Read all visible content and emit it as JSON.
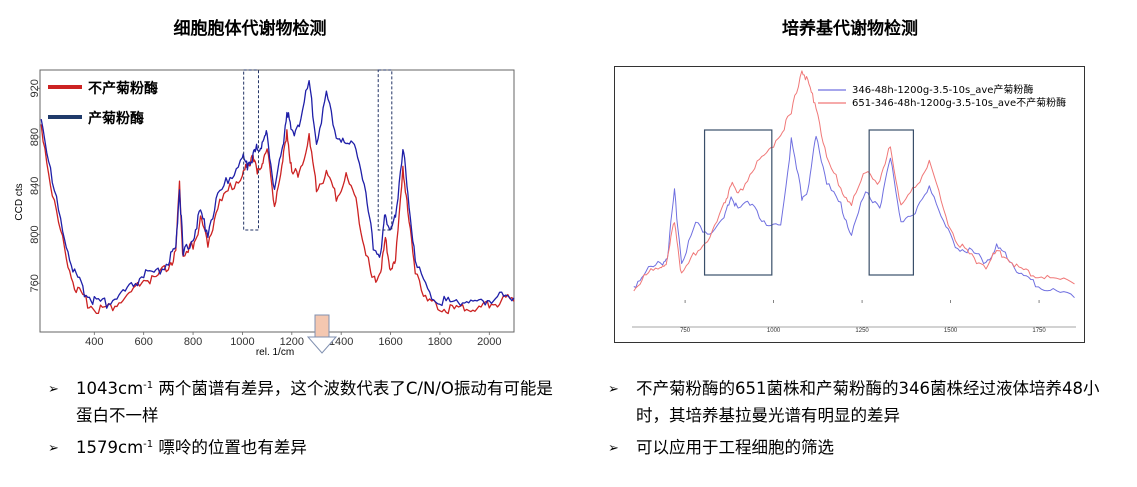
{
  "titles": {
    "left": "细胞胞体代谢物检测",
    "right": "培养基代谢物检测"
  },
  "chart_data": [
    {
      "type": "line",
      "xlabel": "rel. 1/cm",
      "ylabel": "CCD cts",
      "xlim": [
        180,
        2100
      ],
      "ylim": [
        720,
        935
      ],
      "xticks": [
        400,
        600,
        800,
        1000,
        1200,
        1400,
        1600,
        1800,
        2000
      ],
      "yticks": [
        760,
        800,
        840,
        880,
        920
      ],
      "legend": "top-left",
      "series": [
        {
          "name": "不产菊粉酶",
          "color": "#cc2222",
          "x": [
            185,
            230,
            280,
            320,
            360,
            400,
            450,
            500,
            550,
            600,
            650,
            700,
            730,
            745,
            760,
            800,
            830,
            860,
            900,
            950,
            1000,
            1020,
            1043,
            1060,
            1080,
            1100,
            1130,
            1160,
            1180,
            1200,
            1230,
            1270,
            1300,
            1340,
            1380,
            1420,
            1460,
            1500,
            1530,
            1560,
            1579,
            1600,
            1620,
            1650,
            1670,
            1700,
            1750,
            1800,
            1850,
            1900,
            1950,
            2000,
            2050,
            2100
          ],
          "y": [
            888,
            830,
            785,
            755,
            744,
            738,
            736,
            742,
            748,
            760,
            760,
            772,
            780,
            842,
            775,
            790,
            808,
            792,
            820,
            835,
            848,
            852,
            865,
            845,
            858,
            866,
            824,
            850,
            885,
            846,
            850,
            876,
            835,
            848,
            828,
            845,
            826,
            782,
            758,
            768,
            792,
            770,
            774,
            855,
            815,
            770,
            742,
            739,
            736,
            739,
            735,
            741,
            743,
            745
          ]
        },
        {
          "name": "产菊粉酶",
          "color": "#1f1fa8",
          "x": [
            185,
            230,
            280,
            320,
            360,
            400,
            450,
            500,
            550,
            600,
            650,
            700,
            730,
            745,
            760,
            800,
            830,
            860,
            900,
            950,
            1000,
            1020,
            1043,
            1060,
            1080,
            1100,
            1130,
            1160,
            1180,
            1200,
            1230,
            1270,
            1300,
            1340,
            1380,
            1420,
            1460,
            1500,
            1530,
            1560,
            1579,
            1600,
            1620,
            1650,
            1670,
            1700,
            1750,
            1800,
            1850,
            1900,
            1950,
            2000,
            2050,
            2100
          ],
          "y": [
            895,
            840,
            795,
            765,
            750,
            744,
            741,
            747,
            754,
            765,
            764,
            776,
            784,
            838,
            780,
            796,
            815,
            800,
            828,
            845,
            860,
            855,
            862,
            868,
            872,
            880,
            835,
            865,
            900,
            880,
            890,
            922,
            874,
            912,
            880,
            870,
            872,
            830,
            788,
            780,
            815,
            800,
            812,
            870,
            830,
            780,
            750,
            744,
            742,
            744,
            740,
            745,
            746,
            748
          ]
        }
      ],
      "highlight_regions_x": [
        [
          1005,
          1065
        ],
        [
          1550,
          1605
        ]
      ]
    },
    {
      "type": "line",
      "xlim": [
        600,
        1860
      ],
      "ylim": [
        0,
        100
      ],
      "xticks": [
        750,
        1000,
        1250,
        1500,
        1750
      ],
      "legend": "top-right",
      "series": [
        {
          "name": "346-48h-1200g-3.5-10s_ave产菊粉酶",
          "color": "#7070e0",
          "x": [
            605,
            640,
            680,
            700,
            720,
            740,
            780,
            820,
            860,
            880,
            900,
            940,
            980,
            1020,
            1050,
            1080,
            1100,
            1120,
            1150,
            1190,
            1220,
            1260,
            1300,
            1330,
            1360,
            1400,
            1440,
            1480,
            1520,
            1560,
            1600,
            1630,
            1660,
            1700,
            1740,
            1790,
            1850
          ],
          "y": [
            5,
            12,
            15,
            18,
            46,
            16,
            32,
            28,
            34,
            44,
            38,
            42,
            30,
            32,
            68,
            44,
            48,
            72,
            50,
            40,
            28,
            46,
            40,
            60,
            34,
            36,
            50,
            32,
            22,
            20,
            16,
            22,
            18,
            10,
            6,
            3,
            1
          ]
        },
        {
          "name": "651-346-48h-1200g-3.5-10s_ave不产菊粉酶",
          "color": "#f07878",
          "x": [
            605,
            640,
            680,
            700,
            720,
            740,
            780,
            820,
            860,
            880,
            900,
            940,
            980,
            1020,
            1050,
            1080,
            1100,
            1120,
            1150,
            1190,
            1220,
            1260,
            1300,
            1330,
            1360,
            1400,
            1440,
            1480,
            1520,
            1560,
            1600,
            1630,
            1660,
            1700,
            1740,
            1790,
            1850
          ],
          "y": [
            4,
            10,
            14,
            16,
            34,
            10,
            20,
            26,
            40,
            50,
            44,
            56,
            62,
            72,
            80,
            100,
            92,
            84,
            60,
            48,
            40,
            56,
            50,
            66,
            40,
            48,
            60,
            38,
            24,
            18,
            14,
            20,
            18,
            12,
            10,
            8,
            7
          ]
        }
      ],
      "highlight_regions_x": [
        [
          805,
          995
        ],
        [
          1270,
          1395
        ]
      ]
    }
  ],
  "legend_left": [
    "不产菊粉酶",
    "产菊粉酶"
  ],
  "legend_right": [
    "346-48h-1200g-3.5-10s_ave产菊粉酶",
    "651-346-48h-1200g-3.5-10s_ave不产菊粉酶"
  ],
  "bullets_left": [
    {
      "a": "1043cm",
      "sup": "-1",
      "b": " 两个菌谱有差异，这个波数代表了C/N/O振动有可能是蛋白不一样"
    },
    {
      "a": "1579cm",
      "sup": "-1",
      "b": "  嘌呤的位置也有差异"
    }
  ],
  "bullets_right": [
    {
      "a": "不产菊粉酶的651菌株和产菊粉酶的346菌株经过液体培养48小时，其培养基拉曼光谱有明显的差异",
      "sup": "",
      "b": ""
    },
    {
      "a": "可以应用于工程细胞的筛选",
      "sup": "",
      "b": ""
    }
  ],
  "bullet_marker": "➢"
}
